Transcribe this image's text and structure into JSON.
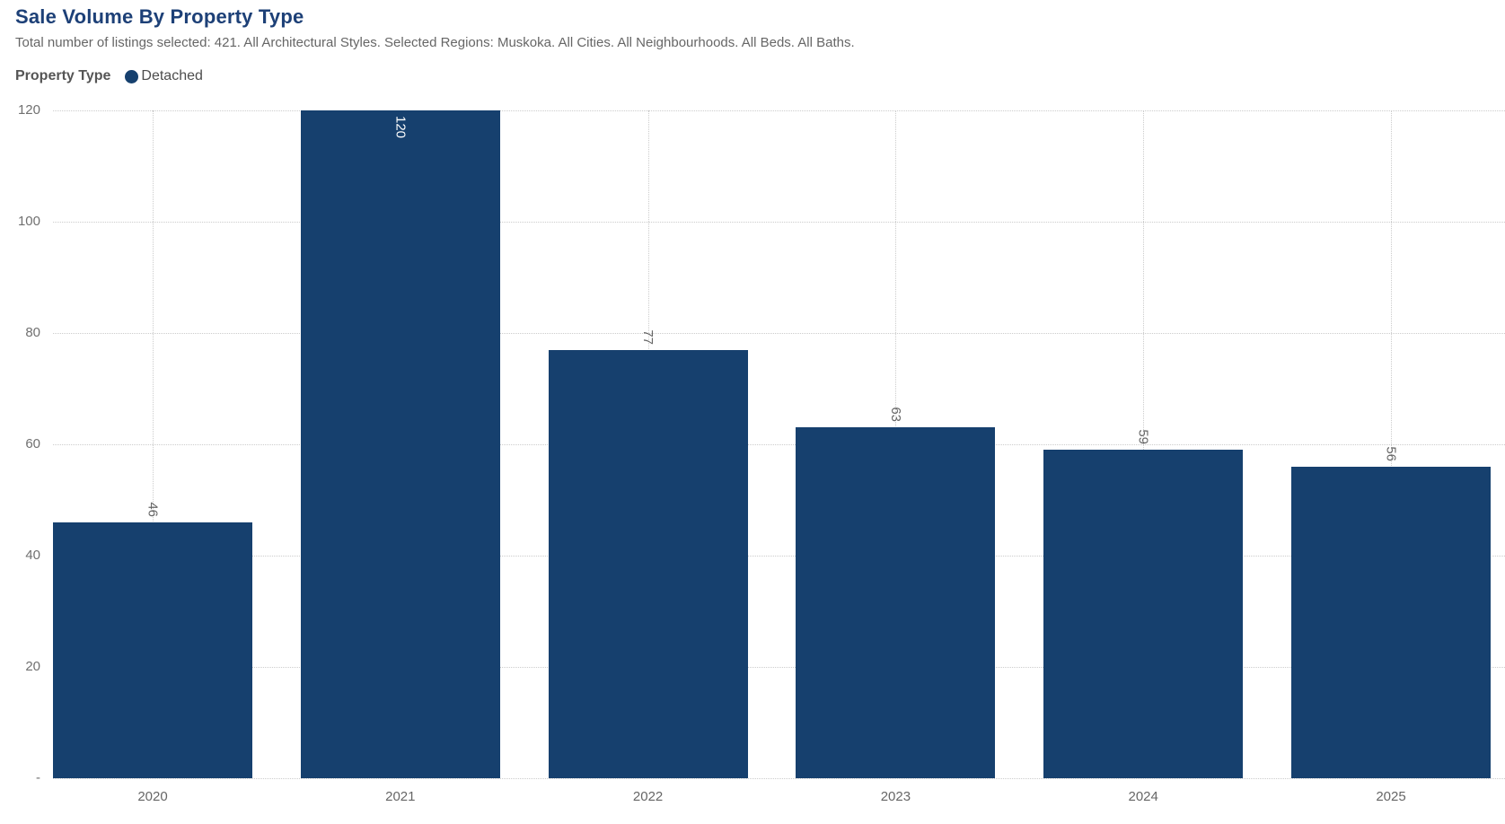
{
  "header": {
    "title": "Sale Volume By Property Type",
    "subtitle": "Total number of listings selected: 421. All Architectural Styles. Selected Regions: Muskoka. All Cities. All Neighbourhoods. All Beds. All Baths."
  },
  "legend": {
    "label": "Property Type",
    "series_name": "Detached",
    "marker_color": "#16406e"
  },
  "chart_data": {
    "type": "bar",
    "title": "Sale Volume By Property Type",
    "subtitle": "Total number of listings selected: 421. All Architectural Styles. Selected Regions: Muskoka. All Cities. All Neighbourhoods. All Beds. All Baths.",
    "series": [
      {
        "name": "Detached",
        "values": [
          46,
          120,
          77,
          63,
          59,
          56
        ]
      }
    ],
    "categories": [
      "2020",
      "2021",
      "2022",
      "2023",
      "2024",
      "2025"
    ],
    "xlabel": "",
    "ylabel": "",
    "ylim": [
      0,
      120
    ],
    "yticks": [
      0,
      20,
      40,
      60,
      80,
      100,
      120
    ],
    "ytick_labels": [
      "-",
      "20",
      "40",
      "60",
      "80",
      "100",
      "120"
    ],
    "grid": "dotted horizontal at ticks and vertical at bar centers",
    "legend_position": "top-left",
    "value_labels": "rotated 90deg, above bars; inside bar in white when bar reaches chart top",
    "bar_color": "#16406e",
    "title_color": "#1d4077",
    "text_color": "#666666"
  }
}
